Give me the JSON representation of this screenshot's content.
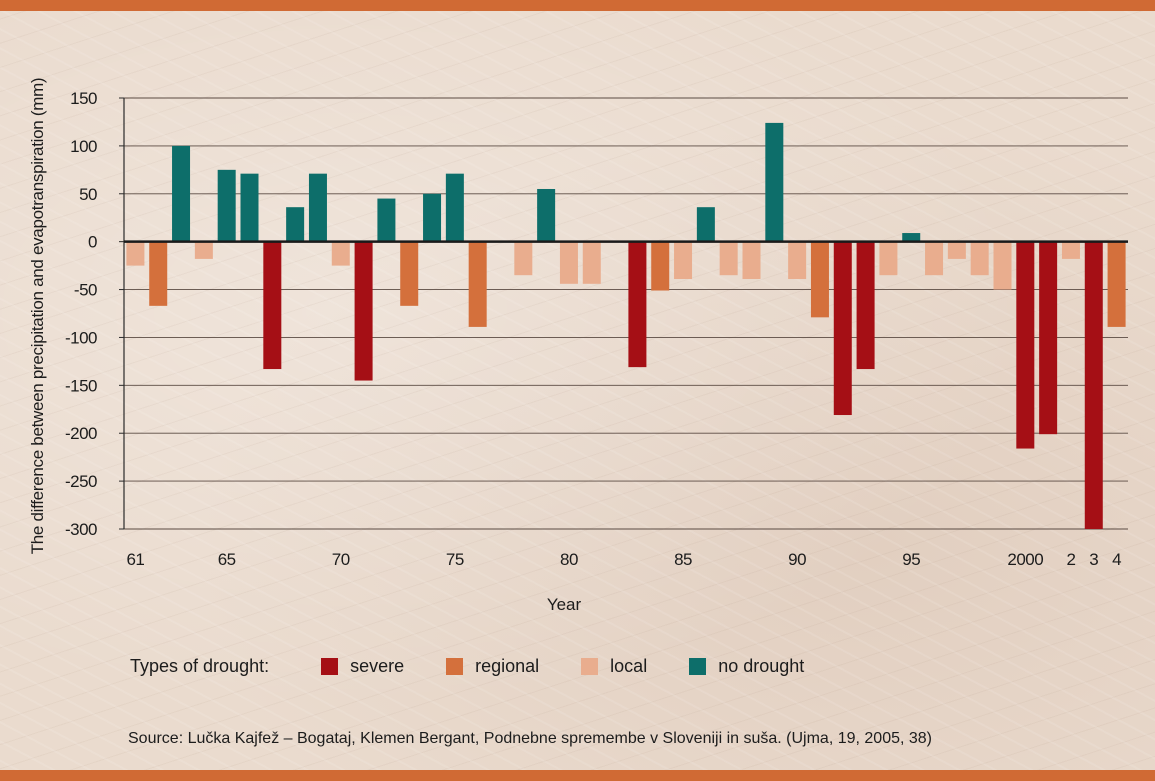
{
  "chart_data": {
    "type": "bar",
    "title": "",
    "xlabel": "Year",
    "ylabel": "The difference between precipitation and evapotranspiration (mm)",
    "ylim": [
      -300,
      150
    ],
    "yticks": [
      150,
      100,
      50,
      0,
      -50,
      -100,
      -150,
      -200,
      -250,
      -300
    ],
    "grid": true,
    "categories": [
      1961,
      1962,
      1963,
      1964,
      1965,
      1966,
      1967,
      1968,
      1969,
      1970,
      1971,
      1972,
      1973,
      1974,
      1975,
      1976,
      1977,
      1978,
      1979,
      1980,
      1981,
      1982,
      1983,
      1984,
      1985,
      1986,
      1987,
      1988,
      1989,
      1990,
      1991,
      1992,
      1993,
      1994,
      1995,
      1996,
      1997,
      1998,
      1999,
      2000,
      2001,
      2002,
      2003,
      2004
    ],
    "values": [
      -25,
      -67,
      100,
      -18,
      75,
      71,
      -133,
      36,
      71,
      -25,
      -145,
      45,
      -67,
      50,
      71,
      -89,
      0,
      -35,
      55,
      -44,
      -44,
      0,
      -131,
      -51,
      -39,
      36,
      -35,
      -39,
      124,
      -39,
      -79,
      -181,
      -133,
      -35,
      9,
      -35,
      -18,
      -35,
      -50,
      -216,
      -201,
      -18,
      -300,
      -89
    ],
    "drought_types": [
      "local",
      "regional",
      "no drought",
      "local",
      "no drought",
      "no drought",
      "severe",
      "no drought",
      "no drought",
      "local",
      "severe",
      "no drought",
      "regional",
      "no drought",
      "no drought",
      "regional",
      "none",
      "local",
      "no drought",
      "local",
      "local",
      "none",
      "severe",
      "regional",
      "local",
      "no drought",
      "local",
      "local",
      "no drought",
      "local",
      "regional",
      "severe",
      "severe",
      "local",
      "no drought",
      "local",
      "local",
      "local",
      "local",
      "severe",
      "severe",
      "local",
      "severe",
      "regional"
    ],
    "x_tick_labels": [
      {
        "year": 1961,
        "label": "61"
      },
      {
        "year": 1965,
        "label": "65"
      },
      {
        "year": 1970,
        "label": "70"
      },
      {
        "year": 1975,
        "label": "75"
      },
      {
        "year": 1980,
        "label": "80"
      },
      {
        "year": 1985,
        "label": "85"
      },
      {
        "year": 1990,
        "label": "90"
      },
      {
        "year": 1995,
        "label": "95"
      },
      {
        "year": 2000,
        "label": "2000"
      },
      {
        "year": 2002,
        "label": "2"
      },
      {
        "year": 2003,
        "label": "3"
      },
      {
        "year": 2004,
        "label": "4"
      }
    ]
  },
  "legend": {
    "title": "Types of drought:",
    "items": [
      {
        "key": "severe",
        "label": "severe",
        "color": "#a50f15"
      },
      {
        "key": "regional",
        "label": "regional",
        "color": "#d4703c"
      },
      {
        "key": "local",
        "label": "local",
        "color": "#e9ad8e"
      },
      {
        "key": "nodrought",
        "label": "no drought",
        "color": "#0d6e6a"
      }
    ]
  },
  "colors": {
    "band": "#d06a34",
    "severe": "#a50f15",
    "regional": "#d4703c",
    "local": "#e9ad8e",
    "no drought": "#0d6e6a"
  },
  "source": "Source: Lučka Kajfež – Bogataj, Klemen Bergant, Podnebne spremembe v Sloveniji in suša. (Ujma, 19, 2005, 38)"
}
